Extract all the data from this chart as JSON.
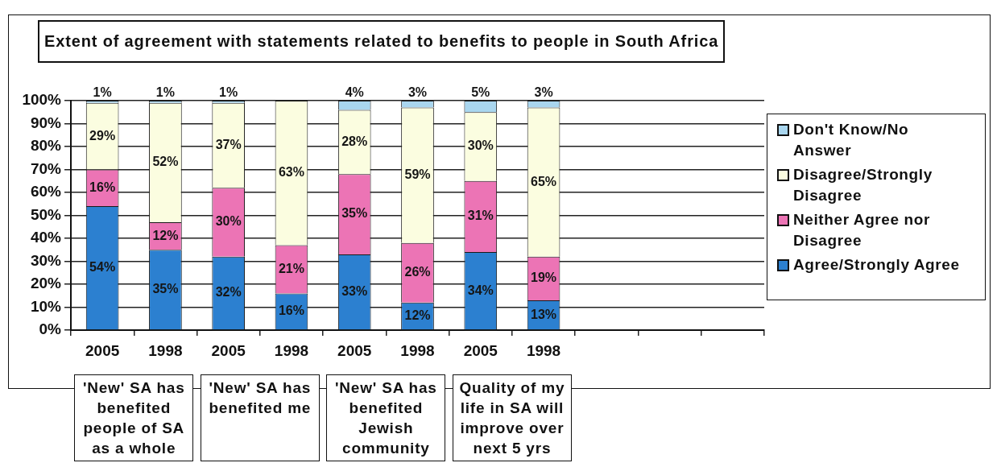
{
  "chart_data": {
    "type": "bar",
    "title": "Extent of agreement with statements related to benefits to people in South Africa",
    "categories": [
      "2005",
      "1998",
      "2005",
      "1998",
      "2005",
      "1998",
      "2005",
      "1998",
      null,
      null,
      null
    ],
    "stacked": true,
    "series": [
      {
        "name": "Agree/Strongly Agree",
        "color": "#2c80d0",
        "values": [
          54,
          35,
          32,
          16,
          33,
          12,
          34,
          13,
          null,
          null,
          null
        ],
        "value_labels": [
          "54%",
          "35%",
          "32%",
          "16%",
          "33%",
          "12%",
          "34%",
          "13%",
          null,
          null,
          null
        ]
      },
      {
        "name": "Neither Agree nor Disagree",
        "color": "#ec74b5",
        "values": [
          16,
          12,
          30,
          21,
          35,
          26,
          31,
          19,
          null,
          null,
          null
        ],
        "value_labels": [
          "16%",
          "12%",
          "30%",
          "21%",
          "35%",
          "26%",
          "31%",
          "19%",
          null,
          null,
          null
        ]
      },
      {
        "name": "Disagree/Strongly Disagree",
        "color": "#fbfde0",
        "values": [
          29,
          52,
          37,
          63,
          28,
          59,
          30,
          65,
          null,
          null,
          null
        ],
        "value_labels": [
          "29%",
          "52%",
          "37%",
          "63%",
          "28%",
          "59%",
          "30%",
          "65%",
          null,
          null,
          null
        ]
      },
      {
        "name": "Don't Know/No Answer",
        "color": "#a9d6ef",
        "values": [
          1,
          1,
          1,
          null,
          4,
          3,
          5,
          3,
          null,
          null,
          null
        ],
        "value_labels": [
          "1%",
          "1%",
          "1%",
          null,
          "4%",
          "3%",
          "5%",
          "3%",
          null,
          null,
          null
        ]
      }
    ],
    "ylim": [
      0,
      100
    ],
    "yticks": [
      {
        "value": 0,
        "label": "0%"
      },
      {
        "value": 10,
        "label": "10%"
      },
      {
        "value": 20,
        "label": "20%"
      },
      {
        "value": 30,
        "label": "30%"
      },
      {
        "value": 40,
        "label": "40%"
      },
      {
        "value": 50,
        "label": "50%"
      },
      {
        "value": 60,
        "label": "60%"
      },
      {
        "value": 70,
        "label": "70%"
      },
      {
        "value": 80,
        "label": "80%"
      },
      {
        "value": 90,
        "label": "90%"
      },
      {
        "value": 100,
        "label": "100%"
      }
    ],
    "grid": "y",
    "legend": "right",
    "annotations": [
      "'New' SA has benefited people of SA as a whole",
      "'New' SA has benefited me",
      "'New' SA has benefited Jewish community",
      "Quality of my life in SA will improve over next 5 yrs"
    ]
  }
}
